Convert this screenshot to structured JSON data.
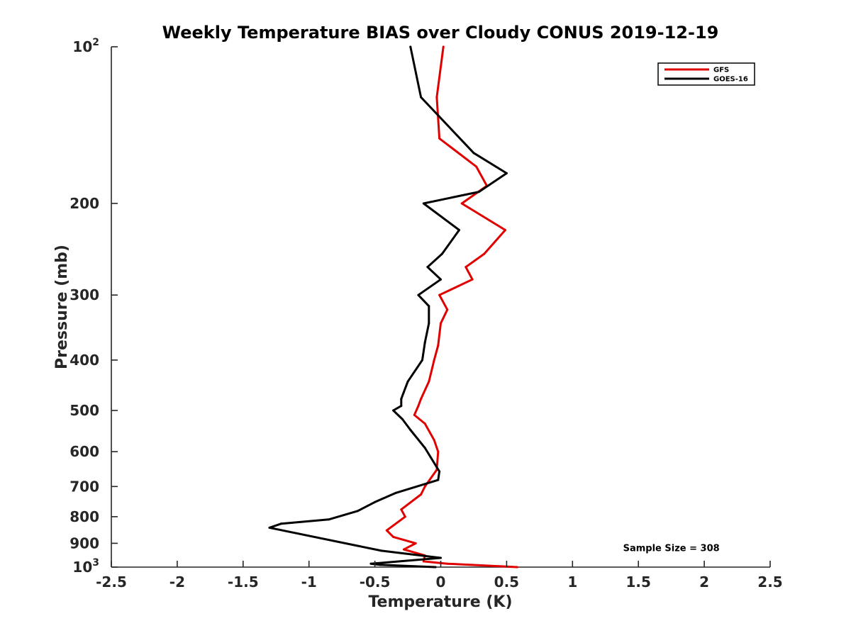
{
  "chart_data": {
    "type": "line",
    "title": "Weekly Temperature BIAS over Cloudy CONUS 2019-12-19",
    "xlabel": "Temperature (K)",
    "ylabel": "Pressure (mb)",
    "xlim": [
      -2.5,
      2.5
    ],
    "ylim": [
      100,
      1000
    ],
    "y_scale": "log",
    "y_reversed": true,
    "grid": false,
    "legend_position": "top-right",
    "x_ticks": [
      {
        "value": -2.5,
        "label": "-2.5"
      },
      {
        "value": -2,
        "label": "-2"
      },
      {
        "value": -1.5,
        "label": "-1.5"
      },
      {
        "value": -1,
        "label": "-1"
      },
      {
        "value": -0.5,
        "label": "-0.5"
      },
      {
        "value": 0,
        "label": "0"
      },
      {
        "value": 0.5,
        "label": "0.5"
      },
      {
        "value": 1,
        "label": "1"
      },
      {
        "value": 1.5,
        "label": "1.5"
      },
      {
        "value": 2,
        "label": "2"
      },
      {
        "value": 2.5,
        "label": "2.5"
      }
    ],
    "y_ticks": [
      {
        "value": 100,
        "base": "10",
        "sup": "2"
      },
      {
        "value": 200,
        "base": "200",
        "sup": ""
      },
      {
        "value": 300,
        "base": "300",
        "sup": ""
      },
      {
        "value": 400,
        "base": "400",
        "sup": ""
      },
      {
        "value": 500,
        "base": "500",
        "sup": ""
      },
      {
        "value": 600,
        "base": "600",
        "sup": ""
      },
      {
        "value": 700,
        "base": "700",
        "sup": ""
      },
      {
        "value": 800,
        "base": "800",
        "sup": ""
      },
      {
        "value": 900,
        "base": "900",
        "sup": ""
      },
      {
        "value": 1000,
        "base": "10",
        "sup": "3"
      }
    ],
    "series": [
      {
        "name": "GFS",
        "color": "#e00000",
        "points": [
          [
            0.02,
            100
          ],
          [
            -0.03,
            125
          ],
          [
            -0.01,
            150
          ],
          [
            0.27,
            170
          ],
          [
            0.35,
            185
          ],
          [
            0.16,
            200
          ],
          [
            0.49,
            225
          ],
          [
            0.33,
            250
          ],
          [
            0.19,
            265
          ],
          [
            0.24,
            280
          ],
          [
            -0.01,
            300
          ],
          [
            0.05,
            320
          ],
          [
            0.0,
            340
          ],
          [
            -0.02,
            375
          ],
          [
            -0.05,
            400
          ],
          [
            -0.09,
            440
          ],
          [
            -0.15,
            475
          ],
          [
            -0.17,
            490
          ],
          [
            -0.2,
            510
          ],
          [
            -0.12,
            530
          ],
          [
            -0.05,
            570
          ],
          [
            -0.02,
            600
          ],
          [
            -0.03,
            650
          ],
          [
            -0.12,
            700
          ],
          [
            -0.15,
            725
          ],
          [
            -0.3,
            775
          ],
          [
            -0.27,
            800
          ],
          [
            -0.41,
            850
          ],
          [
            -0.36,
            875
          ],
          [
            -0.19,
            900
          ],
          [
            -0.28,
            925
          ],
          [
            -0.12,
            950
          ],
          [
            -0.13,
            975
          ],
          [
            0.05,
            985
          ],
          [
            0.58,
            1000
          ]
        ]
      },
      {
        "name": "GOES-16",
        "color": "#000000",
        "points": [
          [
            -0.23,
            100
          ],
          [
            -0.15,
            125
          ],
          [
            0.25,
            160
          ],
          [
            0.5,
            175
          ],
          [
            0.29,
            190
          ],
          [
            -0.13,
            200
          ],
          [
            0.14,
            225
          ],
          [
            0.01,
            250
          ],
          [
            -0.1,
            265
          ],
          [
            0.0,
            280
          ],
          [
            -0.17,
            300
          ],
          [
            -0.09,
            315
          ],
          [
            -0.09,
            340
          ],
          [
            -0.12,
            370
          ],
          [
            -0.14,
            400
          ],
          [
            -0.25,
            440
          ],
          [
            -0.3,
            475
          ],
          [
            -0.3,
            490
          ],
          [
            -0.36,
            500
          ],
          [
            -0.29,
            520
          ],
          [
            -0.23,
            545
          ],
          [
            -0.12,
            590
          ],
          [
            -0.01,
            655
          ],
          [
            -0.02,
            680
          ],
          [
            -0.34,
            720
          ],
          [
            -0.5,
            750
          ],
          [
            -0.63,
            780
          ],
          [
            -0.85,
            810
          ],
          [
            -1.21,
            825
          ],
          [
            -1.3,
            840
          ],
          [
            -0.45,
            930
          ],
          [
            0.0,
            960
          ],
          [
            -0.53,
            985
          ],
          [
            -0.46,
            990
          ],
          [
            -0.04,
            1000
          ]
        ]
      }
    ],
    "annotations": [
      {
        "text": "Sample Size = 308",
        "data_x": 1.75,
        "data_y": 920
      }
    ]
  }
}
